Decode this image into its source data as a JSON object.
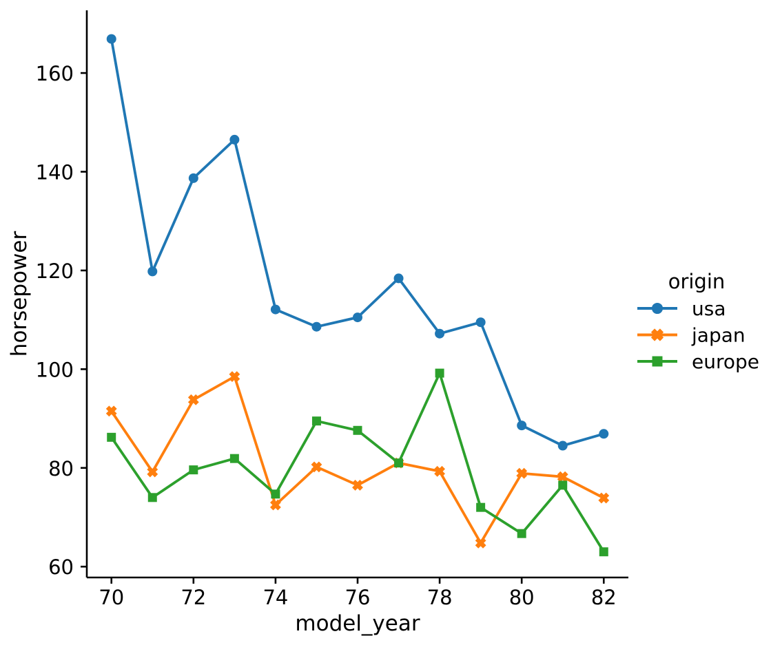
{
  "figure": {
    "background": "#ffffff",
    "text_color": "#000000",
    "axis_color": "#000000"
  },
  "chart_data": {
    "type": "line",
    "title": "",
    "xlabel": "model_year",
    "ylabel": "horsepower",
    "grid": false,
    "x": [
      70,
      71,
      72,
      73,
      74,
      75,
      76,
      77,
      78,
      79,
      80,
      81,
      82
    ],
    "xticks": [
      70,
      72,
      74,
      76,
      78,
      80,
      82
    ],
    "yticks": [
      60,
      80,
      100,
      120,
      140,
      160
    ],
    "xlim": [
      69.4,
      82.6
    ],
    "ylim": [
      57.8,
      172.7
    ],
    "legend": {
      "title": "origin",
      "position": "center right"
    },
    "series": [
      {
        "name": "usa",
        "marker": "circle",
        "color": "#1f77b4",
        "values": [
          166.9,
          119.8,
          138.7,
          146.5,
          112.1,
          108.6,
          110.5,
          118.4,
          107.2,
          109.5,
          88.6,
          84.5,
          86.9
        ]
      },
      {
        "name": "japan",
        "marker": "x",
        "color": "#ff7f0e",
        "values": [
          91.5,
          79.2,
          93.8,
          98.5,
          72.5,
          80.2,
          76.5,
          81.0,
          79.3,
          64.8,
          78.9,
          78.2,
          73.9
        ]
      },
      {
        "name": "europe",
        "marker": "square",
        "color": "#2ca02c",
        "values": [
          86.2,
          74.0,
          79.6,
          81.9,
          74.7,
          89.5,
          87.6,
          81.0,
          99.2,
          72.0,
          66.7,
          76.5,
          63.0
        ]
      }
    ]
  }
}
